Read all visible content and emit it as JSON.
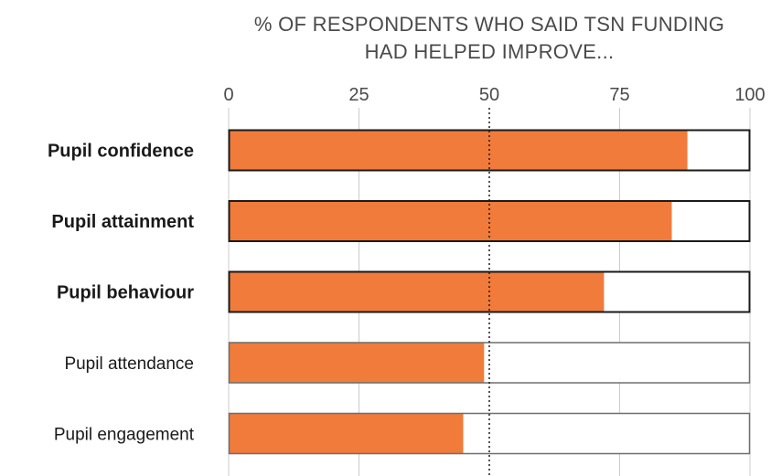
{
  "chart_data": {
    "type": "bar",
    "orientation": "horizontal",
    "title_lines": [
      "% OF RESPONDENTS WHO SAID TSN FUNDING",
      "HAD HELPED IMPROVE..."
    ],
    "categories": [
      "Pupil confidence",
      "Pupil attainment",
      "Pupil behaviour",
      "Pupil attendance",
      "Pupil engagement"
    ],
    "bold_categories": [
      "Pupil confidence",
      "Pupil attainment",
      "Pupil behaviour"
    ],
    "values": [
      88,
      85,
      72,
      49,
      45
    ],
    "xlim": [
      0,
      100
    ],
    "xticks": [
      0,
      25,
      50,
      75,
      100
    ],
    "reference_line": 50,
    "grid": true,
    "colors": {
      "bar": "#f07b3a",
      "track": "#ffffff",
      "border_bold": "#1a1a1a",
      "border_normal": "#6e6e6e",
      "grid": "#cccccc",
      "reference": "#1a1a1a"
    }
  }
}
